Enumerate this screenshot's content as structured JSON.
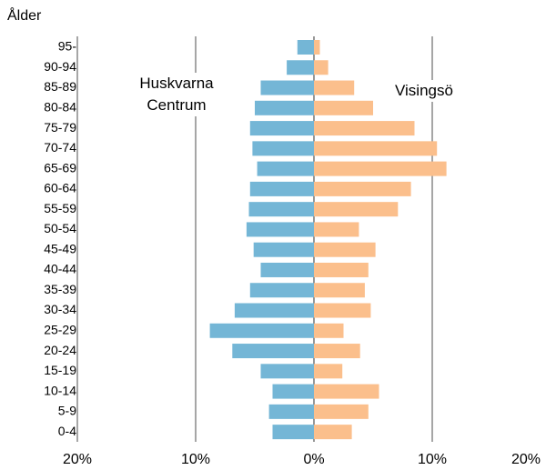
{
  "chart_data": {
    "type": "pyramid",
    "title": "Ålder",
    "categories": [
      "95-",
      "90-94",
      "85-89",
      "80-84",
      "75-79",
      "70-74",
      "65-69",
      "60-64",
      "55-59",
      "50-54",
      "45-49",
      "40-44",
      "35-39",
      "30-34",
      "25-29",
      "20-24",
      "15-19",
      "10-14",
      "5-9",
      "0-4"
    ],
    "series": [
      {
        "name": "Huskvarna Centrum",
        "color": "#74b6d6",
        "values": [
          -1.4,
          -2.3,
          -4.5,
          -5.0,
          -5.4,
          -5.2,
          -4.8,
          -5.4,
          -5.5,
          -5.7,
          -5.1,
          -4.5,
          -5.4,
          -6.7,
          -8.8,
          -6.9,
          -4.5,
          -3.5,
          -3.8,
          -3.5
        ]
      },
      {
        "name": "Visingsö",
        "color": "#fbbf8c",
        "values": [
          0.5,
          1.2,
          3.4,
          5.0,
          8.5,
          10.4,
          11.2,
          8.2,
          7.1,
          3.8,
          5.2,
          4.6,
          4.3,
          4.8,
          2.5,
          3.9,
          2.4,
          5.5,
          4.6,
          3.2
        ]
      }
    ],
    "xlim": [
      -20,
      20
    ],
    "xticks": [
      {
        "value": -20,
        "label": "20%"
      },
      {
        "value": -10,
        "label": "10%"
      },
      {
        "value": 0,
        "label": "0%"
      },
      {
        "value": 10,
        "label": "10%"
      },
      {
        "value": 20,
        "label": "20%"
      }
    ],
    "grid": true
  }
}
